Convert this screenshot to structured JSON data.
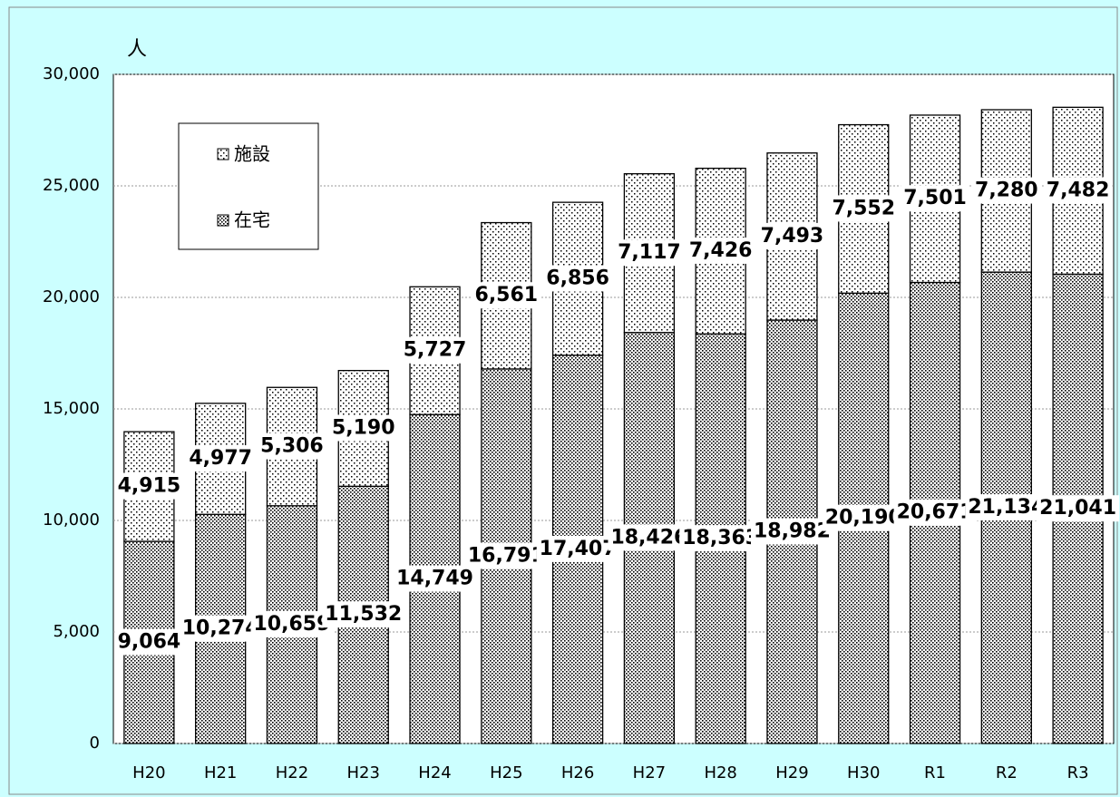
{
  "chart_data": {
    "type": "stacked-bar",
    "y_label": "人",
    "categories": [
      "H20",
      "H21",
      "H22",
      "H23",
      "H24",
      "H25",
      "H26",
      "H27",
      "H28",
      "H29",
      "H30",
      "R1",
      "R2",
      "R3"
    ],
    "series": [
      {
        "name": "在宅",
        "color": "#000000",
        "values": [
          9064,
          10274,
          10659,
          11532,
          14749,
          16791,
          17407,
          18426,
          18363,
          18982,
          20190,
          20671,
          21134,
          21041
        ],
        "value_labels": [
          "9,064",
          "10,274",
          "10,659",
          "11,532",
          "14,749",
          "16,791",
          "17,407",
          "18,426",
          "18,363",
          "18,982",
          "20,190",
          "20,671",
          "21,134",
          "21,041"
        ]
      },
      {
        "name": "施設",
        "color": "#000000",
        "values": [
          4915,
          4977,
          5306,
          5190,
          5727,
          6561,
          6856,
          7117,
          7426,
          7493,
          7552,
          7501,
          7280,
          7482
        ],
        "value_labels": [
          "4,915",
          "4,977",
          "5,306",
          "5,190",
          "5,727",
          "6,561",
          "6,856",
          "7,117",
          "7,426",
          "7,493",
          "7,552",
          "7,501",
          "7,280",
          "7,482"
        ]
      }
    ],
    "ylim": [
      0,
      30000
    ],
    "yticks": [
      0,
      {
        "value": 5000,
        "label": "5,000"
      },
      {
        "value": 10000,
        "label": "10,000"
      },
      {
        "value": 15000,
        "label": "15,000"
      },
      {
        "value": 20000,
        "label": "20,000"
      },
      {
        "value": 25000,
        "label": "25,000"
      },
      {
        "value": 30000,
        "label": "30,000"
      }
    ],
    "grid": true
  }
}
